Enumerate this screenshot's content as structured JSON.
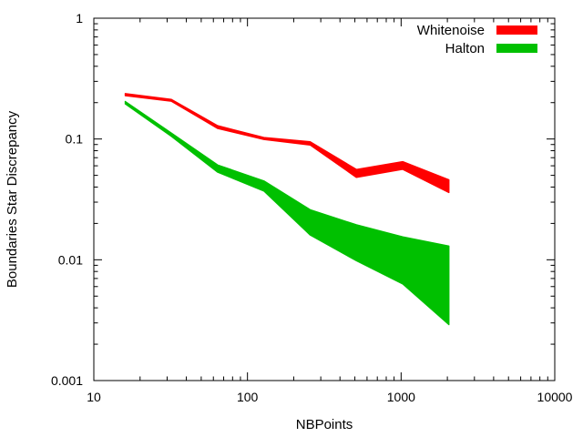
{
  "chart_data": {
    "type": "area",
    "xlabel": "NBPoints",
    "ylabel": "Boundaries Star Discrepancy",
    "xscale": "log",
    "yscale": "log",
    "xlim": [
      10,
      10000
    ],
    "ylim": [
      0.001,
      1
    ],
    "grid": false,
    "legend": "top-right",
    "x_ticks": [
      {
        "value": 10,
        "label": "10"
      },
      {
        "value": 100,
        "label": "100"
      },
      {
        "value": 1000,
        "label": "1000"
      },
      {
        "value": 10000,
        "label": "10000"
      }
    ],
    "y_ticks": [
      {
        "value": 0.001,
        "label": "0.001"
      },
      {
        "value": 0.01,
        "label": "0.01"
      },
      {
        "value": 0.1,
        "label": "0.1"
      },
      {
        "value": 1,
        "label": "1"
      }
    ],
    "series": [
      {
        "name": "Whitenoise",
        "color": "#ff0000",
        "x": [
          16,
          32,
          64,
          128,
          256,
          512,
          1024,
          2048
        ],
        "low": [
          0.228,
          0.205,
          0.122,
          0.099,
          0.089,
          0.048,
          0.056,
          0.036
        ],
        "high": [
          0.238,
          0.213,
          0.129,
          0.103,
          0.095,
          0.056,
          0.065,
          0.046
        ]
      },
      {
        "name": "Halton",
        "color": "#00c000",
        "x": [
          16,
          32,
          64,
          128,
          256,
          512,
          1024,
          2048
        ],
        "low": [
          0.195,
          0.105,
          0.053,
          0.037,
          0.016,
          0.0098,
          0.0063,
          0.0029
        ],
        "high": [
          0.205,
          0.112,
          0.061,
          0.045,
          0.026,
          0.0195,
          0.0155,
          0.013
        ]
      }
    ]
  }
}
